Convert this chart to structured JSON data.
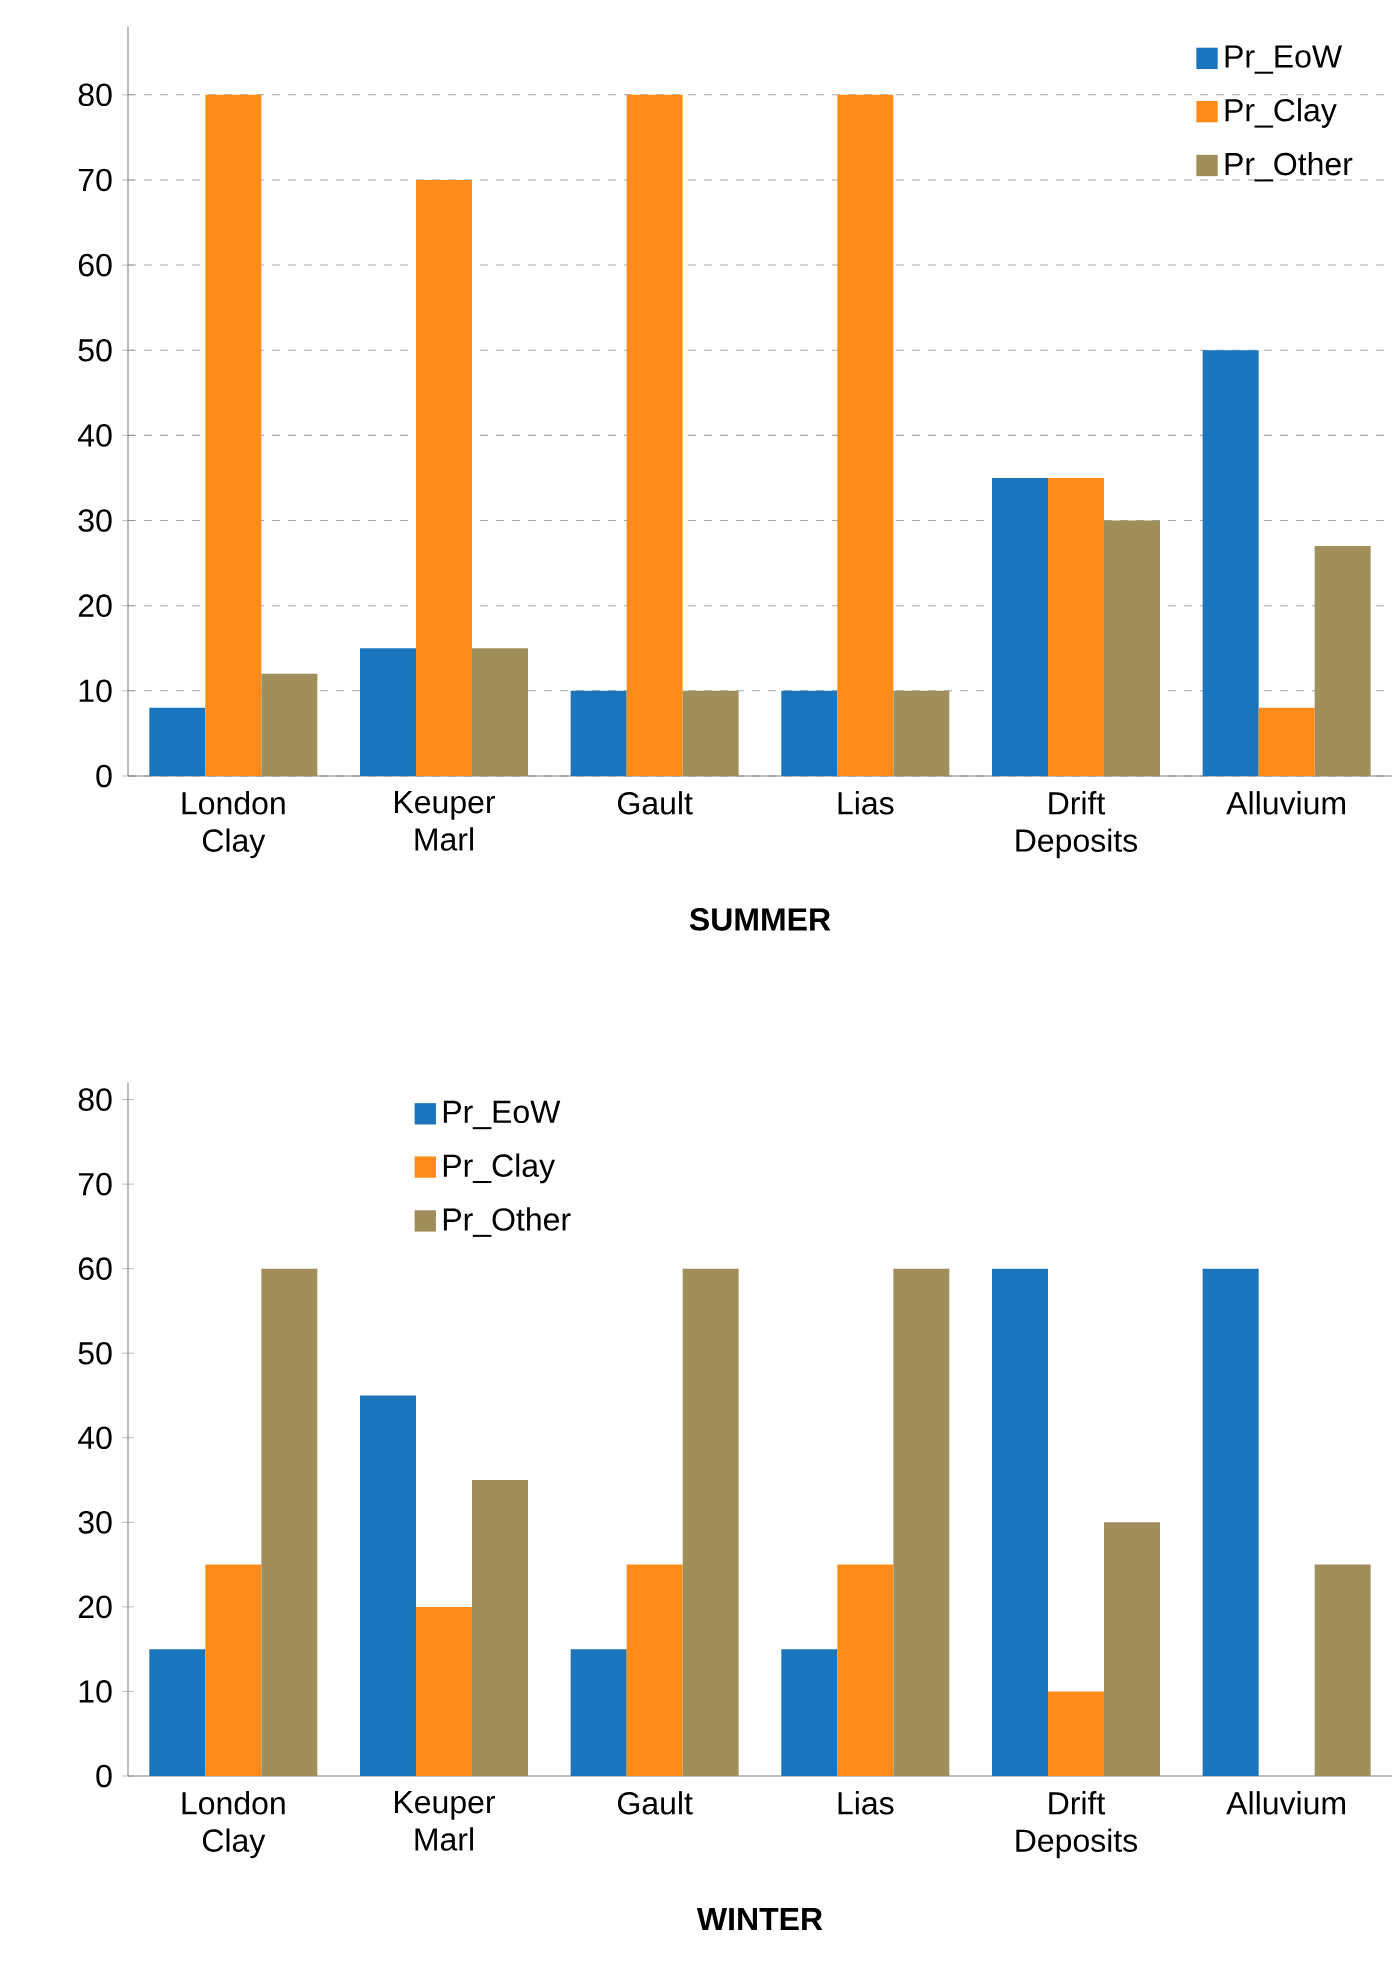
{
  "chart_data": [
    {
      "type": "bar",
      "title": "SUMMER",
      "categories": [
        "London Clay",
        "Keuper Marl",
        "Gault",
        "Lias",
        "Drift Deposits",
        "Alluvium"
      ],
      "series": [
        {
          "name": "Pr_EoW",
          "color": "#1a75bc",
          "values": [
            8,
            15,
            10,
            10,
            35,
            50
          ]
        },
        {
          "name": "Pr_Clay",
          "color": "#ff8c1a",
          "values": [
            80,
            70,
            80,
            80,
            35,
            8
          ]
        },
        {
          "name": "Pr_Other",
          "color": "#a08f5a",
          "values": [
            12,
            15,
            10,
            10,
            30,
            27
          ]
        }
      ],
      "ylim": [
        0,
        88
      ],
      "yticks": [
        0,
        10,
        20,
        30,
        40,
        50,
        60,
        70,
        80
      ],
      "grid": "y",
      "legend": "top right"
    },
    {
      "type": "bar",
      "title": "WINTER",
      "categories": [
        "London Clay",
        "Keuper Marl",
        "Gault",
        "Lias",
        "Drift Deposits",
        "Alluvium"
      ],
      "series": [
        {
          "name": "Pr_EoW",
          "color": "#1a75bc",
          "values": [
            15,
            45,
            15,
            15,
            60,
            60
          ]
        },
        {
          "name": "Pr_Clay",
          "color": "#ff8c1a",
          "values": [
            25,
            20,
            25,
            25,
            10,
            null
          ]
        },
        {
          "name": "Pr_Other",
          "color": "#a08f5a",
          "values": [
            60,
            35,
            60,
            60,
            30,
            25
          ]
        }
      ],
      "ylim": [
        0,
        82
      ],
      "yticks": [
        0,
        10,
        20,
        30,
        40,
        50,
        60,
        70,
        80
      ],
      "legend": "top left"
    }
  ]
}
